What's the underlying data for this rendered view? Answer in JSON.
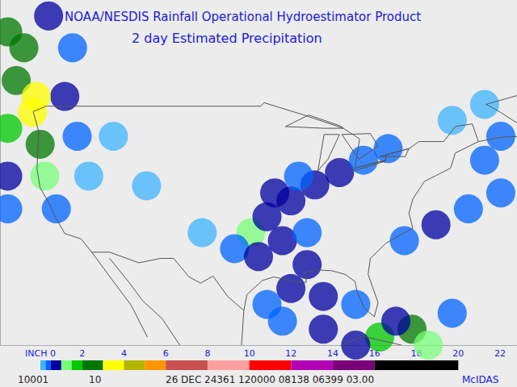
{
  "chart_data": {
    "type": "map",
    "title": "NOAA/NESDIS Rainfall Operational Hydroestimator Product",
    "subtitle": "2 day Estimated Precipitation",
    "xlim": [
      -129,
      -62
    ],
    "ylim": [
      22,
      61
    ],
    "tick_labels": false,
    "outlines": [
      [
        [
          -124.7,
          48.4
        ],
        [
          -123,
          49
        ],
        [
          -95.2,
          49
        ],
        [
          -94.8,
          49.4
        ],
        [
          -89.6,
          48
        ],
        [
          -84.5,
          46.5
        ],
        [
          -82.4,
          45.3
        ],
        [
          -83,
          42
        ],
        [
          -79,
          42.9
        ],
        [
          -79,
          43.5
        ],
        [
          -76,
          44.2
        ],
        [
          -74.7,
          45
        ],
        [
          -71.5,
          45
        ],
        [
          -70,
          46.7
        ],
        [
          -67.8,
          47
        ],
        [
          -67,
          45
        ],
        [
          -70,
          43.7
        ],
        [
          -70.6,
          42
        ],
        [
          -74,
          40.5
        ],
        [
          -75.5,
          38.5
        ],
        [
          -76,
          36.9
        ],
        [
          -75.5,
          35.2
        ],
        [
          -77,
          34.5
        ],
        [
          -79,
          33.5
        ],
        [
          -81,
          31.8
        ],
        [
          -81.3,
          30
        ],
        [
          -80,
          26.8
        ],
        [
          -80.5,
          25.2
        ],
        [
          -81.8,
          26.2
        ],
        [
          -82.7,
          28
        ],
        [
          -83,
          29.2
        ],
        [
          -84.3,
          30
        ],
        [
          -86,
          30.4
        ],
        [
          -88,
          30.5
        ],
        [
          -89.5,
          30.2
        ],
        [
          -89.3,
          29.1
        ],
        [
          -90.5,
          29.1
        ],
        [
          -93.5,
          29.7
        ],
        [
          -95,
          29.3
        ],
        [
          -97,
          27.7
        ],
        [
          -97.4,
          25.9
        ],
        [
          -99.5,
          27.5
        ],
        [
          -101.4,
          29.8
        ],
        [
          -103,
          29
        ],
        [
          -104.5,
          29.7
        ],
        [
          -106.5,
          31.8
        ],
        [
          -108.2,
          31.8
        ],
        [
          -111,
          31.3
        ],
        [
          -114.8,
          32.5
        ],
        [
          -117.1,
          32.5
        ],
        [
          -118.5,
          34
        ],
        [
          -120.6,
          34.6
        ],
        [
          -121.9,
          36.6
        ],
        [
          -122.5,
          37.8
        ],
        [
          -123.8,
          39.8
        ],
        [
          -124.2,
          41.9
        ],
        [
          -124,
          46.2
        ],
        [
          -124.7,
          48.4
        ]
      ],
      [
        [
          -117.1,
          32.5
        ],
        [
          -115,
          30
        ],
        [
          -112,
          26.5
        ],
        [
          -109.9,
          22.9
        ]
      ],
      [
        [
          -114.8,
          31.8
        ],
        [
          -112.2,
          29
        ],
        [
          -110.5,
          27
        ],
        [
          -108,
          25
        ],
        [
          -105.7,
          22
        ]
      ],
      [
        [
          -97.4,
          25.9
        ],
        [
          -97.7,
          22
        ]
      ],
      [
        [
          -90.4,
          22
        ],
        [
          -90.4,
          21
        ],
        [
          -87,
          21.5
        ],
        [
          -86.8,
          22
        ]
      ],
      [
        [
          -85,
          21.9
        ],
        [
          -82,
          23
        ],
        [
          -77,
          22
        ],
        [
          -74.2,
          20.2
        ]
      ],
      [
        [
          -67,
          45
        ],
        [
          -64,
          45.5
        ],
        [
          -61,
          45.6
        ],
        [
          -60,
          46
        ],
        [
          -64.5,
          48.5
        ],
        [
          -66,
          49.2
        ],
        [
          -62,
          50.2
        ]
      ],
      [
        [
          -92,
          46.7
        ],
        [
          -89,
          48
        ],
        [
          -85,
          46.8
        ],
        [
          -84.5,
          46.5
        ],
        [
          -87,
          46.5
        ],
        [
          -92,
          46.7
        ]
      ],
      [
        [
          -87.8,
          41.7
        ],
        [
          -87,
          45.8
        ],
        [
          -85,
          45.8
        ],
        [
          -86.5,
          43
        ],
        [
          -87.8,
          41.7
        ]
      ],
      [
        [
          -84.7,
          45.8
        ],
        [
          -82.5,
          43
        ],
        [
          -80,
          44.5
        ],
        [
          -81,
          45.9
        ],
        [
          -84.7,
          45.8
        ]
      ],
      [
        [
          -83.5,
          41.6
        ],
        [
          -79,
          42.8
        ],
        [
          -80,
          42.7
        ],
        [
          -83,
          42
        ],
        [
          -83.5,
          41.6
        ]
      ],
      [
        [
          -79.8,
          43.3
        ],
        [
          -76,
          44.2
        ],
        [
          -76.5,
          43.3
        ],
        [
          -79.8,
          43.3
        ]
      ]
    ],
    "rain": [
      [
        -128,
        57.4,
        2.5
      ],
      [
        -125.9,
        55.6,
        2.5
      ],
      [
        -126.9,
        51.9,
        2.5
      ],
      [
        -124.8,
        48.3,
        3
      ],
      [
        -123.8,
        44.7,
        2
      ],
      [
        -123.2,
        41.1,
        1
      ],
      [
        -121.7,
        37.4,
        0.3
      ],
      [
        -128,
        46.5,
        1.5
      ],
      [
        -128,
        41.1,
        0.6
      ],
      [
        -128,
        37.4,
        0.3
      ],
      [
        -120.6,
        50.1,
        0.5
      ],
      [
        -119,
        45.6,
        0.3
      ],
      [
        -117.5,
        41.1,
        0.2
      ],
      [
        -114.3,
        45.6,
        0.2
      ],
      [
        -119.6,
        55.6,
        0.3
      ],
      [
        -122.7,
        59.2,
        0.6
      ],
      [
        -124.3,
        50.1,
        3.5
      ],
      [
        -96.5,
        34.7,
        1
      ],
      [
        -94.4,
        36.5,
        0.7
      ],
      [
        -91.3,
        38.3,
        0.5
      ],
      [
        -88.2,
        40.1,
        0.6
      ],
      [
        -85,
        41.5,
        0.5
      ],
      [
        -81.9,
        42.9,
        0.4
      ],
      [
        -78.7,
        44.2,
        0.3
      ],
      [
        -93.4,
        39.2,
        0.8
      ],
      [
        -90.3,
        41.1,
        0.3
      ],
      [
        -98.6,
        32.9,
        0.4
      ],
      [
        -95.5,
        32,
        0.6
      ],
      [
        -92.4,
        33.8,
        0.5
      ],
      [
        -89.2,
        34.7,
        0.4
      ],
      [
        -89.2,
        31.1,
        0.8
      ],
      [
        -91.3,
        28.4,
        0.6
      ],
      [
        -87.1,
        27.5,
        0.5
      ],
      [
        -94.4,
        26.6,
        0.3
      ],
      [
        -92.4,
        24.7,
        0.4
      ],
      [
        -87.1,
        23.8,
        0.5
      ],
      [
        -82.9,
        26.6,
        0.4
      ],
      [
        -76.6,
        33.8,
        0.4
      ],
      [
        -72.5,
        35.6,
        0.5
      ],
      [
        -68.3,
        37.4,
        0.4
      ],
      [
        -64.1,
        39.2,
        0.3
      ],
      [
        -66.2,
        42.9,
        0.3
      ],
      [
        -64.1,
        45.6,
        0.3
      ],
      [
        -70.4,
        47.4,
        0.2
      ],
      [
        -66.2,
        49.2,
        0.2
      ],
      [
        -79.8,
        22.9,
        1.5
      ],
      [
        -75.6,
        23.8,
        2
      ],
      [
        -73.5,
        22,
        1
      ],
      [
        -77.7,
        24.7,
        0.5
      ],
      [
        -70.4,
        25.6,
        0.3
      ],
      [
        -82.9,
        22,
        0.5
      ],
      [
        -102.8,
        34.7,
        0.2
      ],
      [
        -110,
        40,
        0.1
      ]
    ],
    "colorbar": {
      "range": [
        0,
        22
      ],
      "ticks": [
        {
          "value": 0,
          "label": "INCH 0"
        },
        2,
        4,
        6,
        8,
        10,
        12,
        14,
        16,
        18,
        20,
        22
      ],
      "bins": [
        0,
        0.25,
        0.5,
        1,
        1.5,
        2,
        3,
        4,
        5,
        6,
        8,
        10,
        12,
        14,
        16,
        20
      ],
      "colors": [
        "#3fb4ff",
        "#0064ff",
        "#0000a0",
        "#78ff78",
        "#00c800",
        "#007800",
        "#ffff00",
        "#b4b400",
        "#ff9600",
        "#c85050",
        "#ffa0a0",
        "#ff0000",
        "#b400b4",
        "#780078",
        "#000000"
      ]
    },
    "footer": [
      "10001",
      "10",
      "26 DEC 24361 120000 08138 06399 03.00",
      "McIDAS"
    ]
  }
}
